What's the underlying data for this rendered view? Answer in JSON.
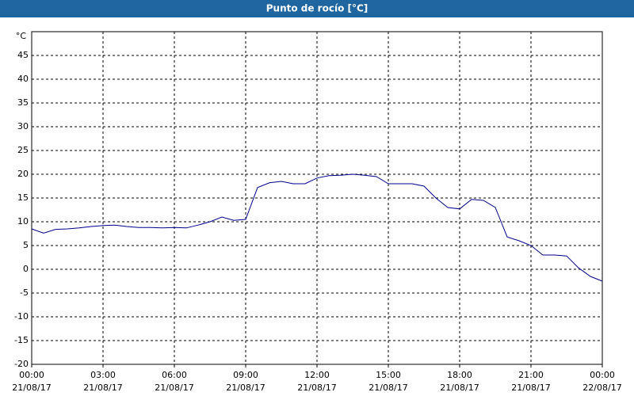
{
  "chart_data": {
    "type": "line",
    "title": "Punto de rocío [°C]",
    "y_label": "°C",
    "x": [
      "21/08/17 00:00",
      "21/08/17 00:30",
      "21/08/17 01:00",
      "21/08/17 01:30",
      "21/08/17 02:00",
      "21/08/17 02:30",
      "21/08/17 03:00",
      "21/08/17 03:30",
      "21/08/17 04:00",
      "21/08/17 04:30",
      "21/08/17 05:00",
      "21/08/17 05:30",
      "21/08/17 06:00",
      "21/08/17 06:30",
      "21/08/17 07:00",
      "21/08/17 07:30",
      "21/08/17 08:00",
      "21/08/17 08:30",
      "21/08/17 09:00",
      "21/08/17 09:30",
      "21/08/17 10:00",
      "21/08/17 10:30",
      "21/08/17 11:00",
      "21/08/17 11:30",
      "21/08/17 12:00",
      "21/08/17 12:30",
      "21/08/17 13:00",
      "21/08/17 13:30",
      "21/08/17 14:00",
      "21/08/17 14:30",
      "21/08/17 15:00",
      "21/08/17 15:30",
      "21/08/17 16:00",
      "21/08/17 16:30",
      "21/08/17 17:00",
      "21/08/17 17:30",
      "21/08/17 18:00",
      "21/08/17 18:30",
      "21/08/17 19:00",
      "21/08/17 19:30",
      "21/08/17 20:00",
      "21/08/17 20:30",
      "21/08/17 21:00",
      "21/08/17 21:30",
      "21/08/17 22:00",
      "21/08/17 22:30",
      "21/08/17 23:00",
      "21/08/17 23:30",
      "22/08/17 00:00"
    ],
    "series": [
      {
        "color": "#00008b",
        "values": [
          8.5,
          7.6,
          8.4,
          8.5,
          8.7,
          9.0,
          9.2,
          9.3,
          9.0,
          8.8,
          8.8,
          8.7,
          8.8,
          8.7,
          9.3,
          10.0,
          11.0,
          10.3,
          10.5,
          17.2,
          18.2,
          18.5,
          18.0,
          18.0,
          19.2,
          19.7,
          19.8,
          20.0,
          19.8,
          19.5,
          18.0,
          18.0,
          18.0,
          17.5,
          15.0,
          13.0,
          12.7,
          14.7,
          14.5,
          13.0,
          6.8,
          6.0,
          5.0,
          3.0,
          3.0,
          2.8,
          0.3,
          -1.5,
          -2.5
        ]
      }
    ],
    "xlim": [
      "21/08/17 00:00",
      "22/08/17 00:00"
    ],
    "xticks": [
      {
        "value": "21/08/17 00:00",
        "label": [
          "00:00",
          "21/08/17"
        ]
      },
      {
        "value": "21/08/17 03:00",
        "label": [
          "03:00",
          "21/08/17"
        ]
      },
      {
        "value": "21/08/17 06:00",
        "label": [
          "06:00",
          "21/08/17"
        ]
      },
      {
        "value": "21/08/17 09:00",
        "label": [
          "09:00",
          "21/08/17"
        ]
      },
      {
        "value": "21/08/17 12:00",
        "label": [
          "12:00",
          "21/08/17"
        ]
      },
      {
        "value": "21/08/17 15:00",
        "label": [
          "15:00",
          "21/08/17"
        ]
      },
      {
        "value": "21/08/17 18:00",
        "label": [
          "18:00",
          "21/08/17"
        ]
      },
      {
        "value": "21/08/17 21:00",
        "label": [
          "21:00",
          "21/08/17"
        ]
      },
      {
        "value": "22/08/17 00:00",
        "label": [
          "00:00",
          "22/08/17"
        ]
      }
    ],
    "ylim": [
      -20,
      50
    ],
    "yticks": [
      -20,
      -15,
      -10,
      -5,
      0,
      5,
      10,
      15,
      20,
      25,
      30,
      35,
      40,
      45
    ],
    "grid": true
  }
}
